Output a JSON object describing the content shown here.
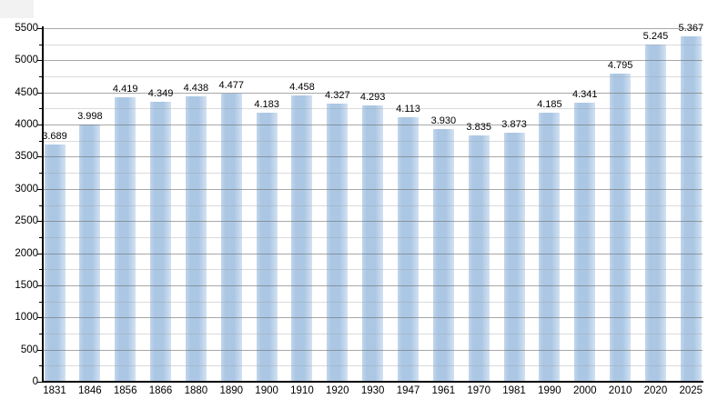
{
  "chart_data": {
    "type": "bar",
    "title": "",
    "xlabel": "",
    "ylabel": "",
    "categories": [
      "1831",
      "1846",
      "1856",
      "1866",
      "1880",
      "1890",
      "1900",
      "1910",
      "1920",
      "1930",
      "1947",
      "1961",
      "1970",
      "1981",
      "1990",
      "2000",
      "2010",
      "2020",
      "2025"
    ],
    "values": [
      3689,
      3998,
      4419,
      4349,
      4438,
      4477,
      4183,
      4458,
      4327,
      4293,
      4113,
      3930,
      3835,
      3873,
      4185,
      4341,
      4795,
      5245,
      5367
    ],
    "value_labels": [
      "3.689",
      "3.998",
      "4.419",
      "4.349",
      "4.438",
      "4.477",
      "4.183",
      "4.458",
      "4.327",
      "4.293",
      "4.113",
      "3.930",
      "3.835",
      "3.873",
      "4.185",
      "4.341",
      "4.795",
      "5.245",
      "5.367"
    ],
    "ylim": [
      0,
      5500
    ],
    "y_major_step": 500,
    "y_minor_step": 250,
    "y_tick_labels": [
      "0",
      "500",
      "1000",
      "1500",
      "2000",
      "2500",
      "3000",
      "3500",
      "4000",
      "4500",
      "5000",
      "5500"
    ],
    "grid": true,
    "legend": false,
    "colors": {
      "bar_left_edge": "#c2d6ec",
      "bar_main": "#abc7e4",
      "bar_right_edge": "#d3e2f2",
      "grid_major": "rgba(110,110,110,0.60)",
      "grid_minor": "rgba(160,160,160,0.38)",
      "axis": "#000000",
      "text": "#000000",
      "background": "#ffffff",
      "corner_artifact": "#f2f2f2"
    }
  }
}
